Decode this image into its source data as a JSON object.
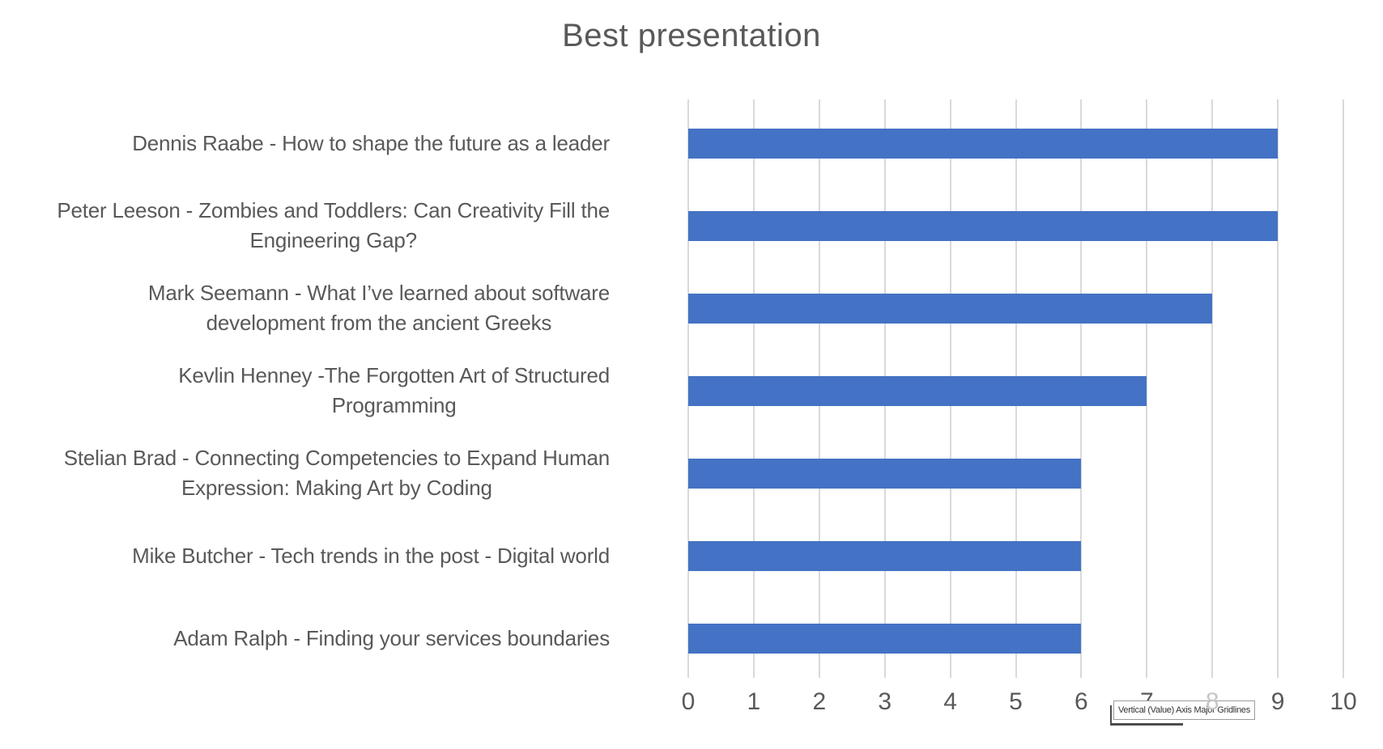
{
  "chart_data": {
    "type": "bar",
    "orientation": "horizontal",
    "title": "Best presentation",
    "categories": [
      "Dennis Raabe - How to shape the future as a leader",
      "Peter Leeson - Zombies and Toddlers: Can Creativity Fill the Engineering Gap?",
      "Mark Seemann - What I’ve learned about software development from the ancient Greeks",
      "Kevlin Henney -The Forgotten Art of Structured Programming",
      "Stelian Brad - Connecting Competencies to Expand Human Expression: Making Art by Coding",
      "Mike Butcher - Tech trends in the post - Digital world",
      "Adam Ralph - Finding your services boundaries"
    ],
    "label_lines": [
      [
        "Dennis Raabe - How to shape the future as a leader"
      ],
      [
        "Peter Leeson - Zombies and Toddlers: Can Creativity Fill the",
        "Engineering Gap?"
      ],
      [
        "Mark Seemann - What I’ve learned about software",
        "development from the ancient Greeks"
      ],
      [
        "Kevlin Henney -The Forgotten Art of Structured",
        "Programming"
      ],
      [
        "Stelian Brad - Connecting Competencies to Expand Human",
        "Expression: Making Art by Coding"
      ],
      [
        "Mike Butcher - Tech trends in the post - Digital world"
      ],
      [
        "Adam Ralph - Finding your services boundaries"
      ]
    ],
    "values": [
      9,
      9,
      8,
      7,
      6,
      6,
      6
    ],
    "xlabel": "",
    "ylabel": "",
    "xlim": [
      0,
      10
    ],
    "x_ticks": [
      0,
      1,
      2,
      3,
      4,
      5,
      6,
      7,
      8,
      9,
      10
    ],
    "grid": true,
    "legend": false,
    "bar_color": "#4472C4",
    "gridline_color": "#D9D9D9",
    "axis_text_color": "#595959",
    "title_color": "#595959"
  },
  "tooltip": {
    "text": "Vertical (Value) Axis Major Gridlines"
  }
}
